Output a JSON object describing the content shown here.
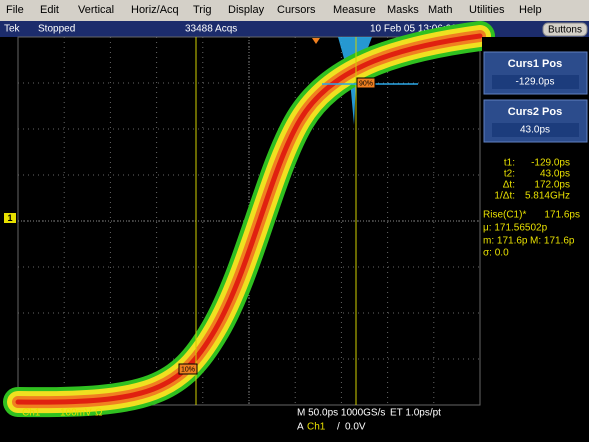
{
  "menu": [
    "File",
    "Edit",
    "Vertical",
    "Horiz/Acq",
    "Trig",
    "Display",
    "Cursors",
    "Measure",
    "Masks",
    "Math",
    "Utilities",
    "Help"
  ],
  "status": {
    "brand": "Tek",
    "state": "Stopped",
    "acqs": "33488 Acqs",
    "datetime": "10 Feb 05 13:06:00",
    "button": "Buttons"
  },
  "cursor_panel": [
    {
      "label": "Curs1 Pos",
      "value": "-129.0ps"
    },
    {
      "label": "Curs2 Pos",
      "value": "43.0ps"
    }
  ],
  "cursor_readout": [
    {
      "label": "t1:",
      "value": "-129.0ps"
    },
    {
      "label": "t2:",
      "value": "43.0ps"
    },
    {
      "label": "Δt:",
      "value": "172.0ps"
    },
    {
      "label": "1/Δt:",
      "value": "5.814GHz"
    }
  ],
  "measurement": {
    "name": "Rise(C1)*",
    "value": "171.6ps",
    "mean": "μ: 171.56502p",
    "min": "m: 171.6p",
    "max": "M: 171.6p",
    "sigma": "σ: 0.0"
  },
  "waveform_labels": [
    "10%",
    "90%"
  ],
  "channel_marker": "1",
  "footer": {
    "channel": "Ch1",
    "scale": "100mV",
    "coupling": "Ω",
    "timebase": "M 50.0ps 1000GS/s",
    "et": "ET 1.0ps/pt",
    "trigger_mode": "A",
    "trigger_source": "Ch1",
    "trigger_slope": "/",
    "trigger_level": "0.0V"
  }
}
